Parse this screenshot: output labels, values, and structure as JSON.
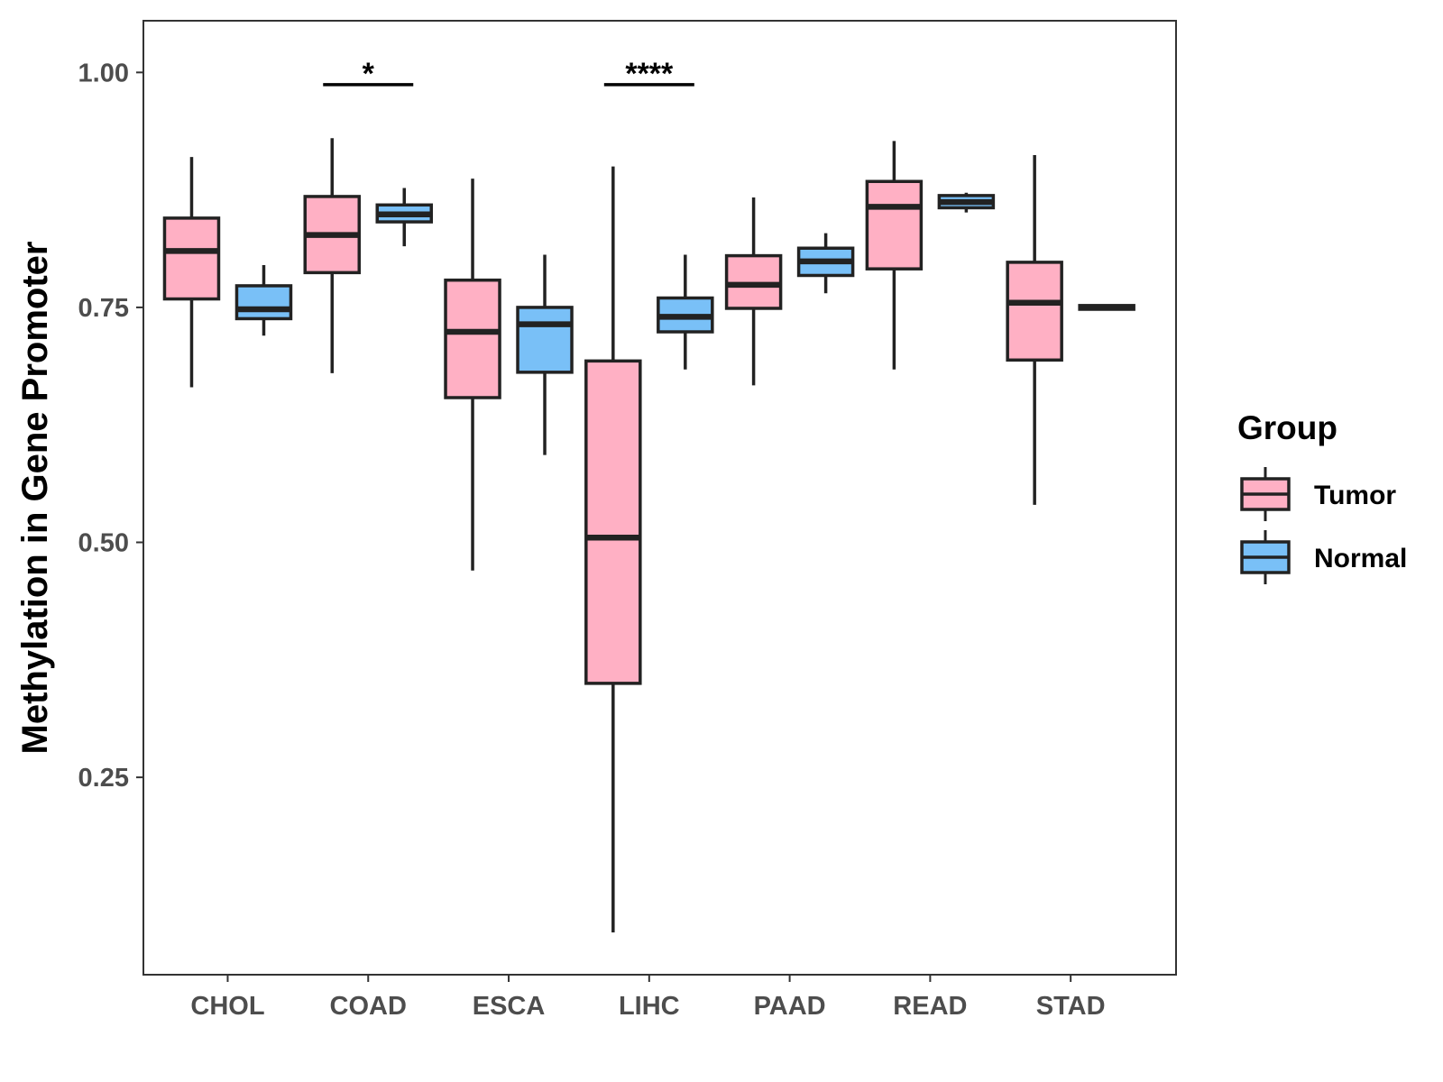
{
  "chart_data": {
    "type": "box",
    "title": "",
    "xlabel": "",
    "ylabel": "Methylation in Gene Promoter",
    "ylim": [
      0.04,
      1.055
    ],
    "yticks": [
      0.25,
      0.5,
      0.75,
      1.0
    ],
    "ytick_labels": [
      "0.25",
      "0.50",
      "0.75",
      "1.00"
    ],
    "categories": [
      "CHOL",
      "COAD",
      "ESCA",
      "LIHC",
      "PAAD",
      "READ",
      "STAD"
    ],
    "legend": {
      "title": "Group",
      "position": "right",
      "entries": [
        {
          "name": "Tumor",
          "color": "#ffb0c4"
        },
        {
          "name": "Normal",
          "color": "#79c0f7"
        }
      ]
    },
    "series": [
      {
        "name": "Tumor",
        "color": "#ffb0c4",
        "boxes": [
          {
            "category": "CHOL",
            "whisker_low": 0.665,
            "q1": 0.759,
            "median": 0.81,
            "q3": 0.845,
            "whisker_high": 0.91
          },
          {
            "category": "COAD",
            "whisker_low": 0.68,
            "q1": 0.787,
            "median": 0.827,
            "q3": 0.868,
            "whisker_high": 0.93
          },
          {
            "category": "ESCA",
            "whisker_low": 0.47,
            "q1": 0.654,
            "median": 0.724,
            "q3": 0.779,
            "whisker_high": 0.887
          },
          {
            "category": "LIHC",
            "whisker_low": 0.085,
            "q1": 0.35,
            "median": 0.505,
            "q3": 0.693,
            "whisker_high": 0.9
          },
          {
            "category": "PAAD",
            "whisker_low": 0.667,
            "q1": 0.749,
            "median": 0.774,
            "q3": 0.805,
            "whisker_high": 0.867
          },
          {
            "category": "READ",
            "whisker_low": 0.684,
            "q1": 0.791,
            "median": 0.857,
            "q3": 0.884,
            "whisker_high": 0.927
          },
          {
            "category": "STAD",
            "whisker_low": 0.54,
            "q1": 0.694,
            "median": 0.755,
            "q3": 0.798,
            "whisker_high": 0.912
          }
        ]
      },
      {
        "name": "Normal",
        "color": "#79c0f7",
        "boxes": [
          {
            "category": "CHOL",
            "whisker_low": 0.72,
            "q1": 0.738,
            "median": 0.748,
            "q3": 0.773,
            "whisker_high": 0.795
          },
          {
            "category": "COAD",
            "whisker_low": 0.815,
            "q1": 0.841,
            "median": 0.849,
            "q3": 0.859,
            "whisker_high": 0.877
          },
          {
            "category": "ESCA",
            "whisker_low": 0.593,
            "q1": 0.681,
            "median": 0.732,
            "q3": 0.75,
            "whisker_high": 0.806
          },
          {
            "category": "LIHC",
            "whisker_low": 0.684,
            "q1": 0.724,
            "median": 0.74,
            "q3": 0.76,
            "whisker_high": 0.806
          },
          {
            "category": "PAAD",
            "whisker_low": 0.765,
            "q1": 0.784,
            "median": 0.799,
            "q3": 0.813,
            "whisker_high": 0.829
          },
          {
            "category": "READ",
            "whisker_low": 0.851,
            "q1": 0.856,
            "median": 0.862,
            "q3": 0.869,
            "whisker_high": 0.872
          },
          {
            "category": "STAD",
            "whisker_low": 0.747,
            "q1": 0.748,
            "median": 0.75,
            "q3": 0.752,
            "whisker_high": 0.753
          }
        ]
      }
    ],
    "annotations": [
      {
        "category": "COAD",
        "label": "*",
        "y": 0.987
      },
      {
        "category": "LIHC",
        "label": "****",
        "y": 0.987
      }
    ]
  }
}
